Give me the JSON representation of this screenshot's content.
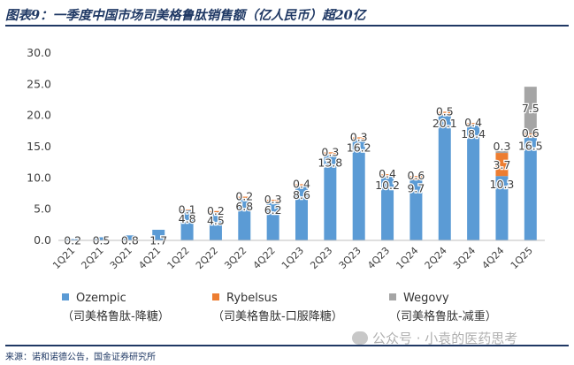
{
  "header": {
    "title": "图表9：一季度中国市场司美格鲁肽销售额（亿人民币）超20亿"
  },
  "footer": {
    "source": "来源：诺和诺德公告，国金证券研究所",
    "watermark": "公众号 · 小袁的医药思考",
    "watermark_icon": "wechat-icon"
  },
  "colors": {
    "ozempic": "#5b9bd5",
    "rybelsus": "#ed7d31",
    "wegovy": "#a5a5a5",
    "axis": "#bfbfbf",
    "text": "#404040"
  },
  "chart_data": {
    "type": "bar",
    "stacked": true,
    "title": "",
    "xlabel": "",
    "ylabel": "",
    "ylim": [
      0,
      30
    ],
    "yticks": [
      "0.0",
      "5.0",
      "10.0",
      "15.0",
      "20.0",
      "25.0",
      "30.0"
    ],
    "grid": false,
    "categories": [
      "1Q21",
      "2Q21",
      "3Q21",
      "4Q21",
      "1Q22",
      "2Q22",
      "3Q22",
      "4Q22",
      "1Q23",
      "2Q23",
      "3Q23",
      "4Q23",
      "1Q24",
      "2Q24",
      "3Q24",
      "4Q24",
      "1Q25"
    ],
    "series": [
      {
        "name": "Ozempic",
        "sublabel": "（司美格鲁肽-降糖）",
        "values": [
          0.2,
          0.5,
          0.8,
          1.7,
          4.8,
          4.5,
          6.8,
          6.2,
          8.6,
          13.8,
          16.2,
          10.2,
          9.7,
          20.1,
          18.4,
          10.3,
          16.5
        ],
        "labels": [
          "0.2",
          "0.5",
          "0.8",
          "1.7",
          "4.8",
          "4.5",
          "6.8",
          "6.2",
          "8.6",
          "13.8",
          "16.2",
          "10.2",
          "9.7",
          "20.1",
          "18.4",
          "10.3",
          "16.5"
        ]
      },
      {
        "name": "Rybelsus",
        "sublabel": "（司美格鲁肽-口服降糖）",
        "values": [
          0,
          0,
          0,
          0,
          0.1,
          0.2,
          0.2,
          0.3,
          0.4,
          0.3,
          0.3,
          0.4,
          0.6,
          0.5,
          0.4,
          3.7,
          0.6
        ],
        "labels": [
          "",
          "",
          "",
          "",
          "0.1",
          "0.2",
          "0.2",
          "0.3",
          "0.4",
          "0.3",
          "0.3",
          "0.4",
          "0.6",
          "0.5",
          "0.4",
          "3.7",
          "0.6"
        ]
      },
      {
        "name": "Wegovy",
        "sublabel": "（司美格鲁肽-减重）",
        "values": [
          0,
          0,
          0,
          0,
          0,
          0,
          0,
          0,
          0,
          0,
          0,
          0,
          0,
          0,
          0,
          0.3,
          7.5
        ],
        "labels": [
          "",
          "",
          "",
          "",
          "",
          "",
          "",
          "",
          "",
          "",
          "",
          "",
          "",
          "",
          "",
          "0.3",
          "7.5"
        ]
      }
    ]
  }
}
